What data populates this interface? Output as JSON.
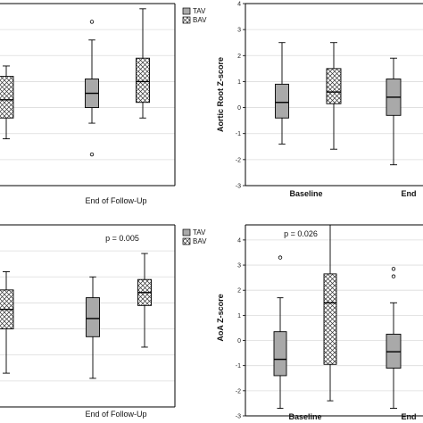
{
  "colors": {
    "tav": "#a9a9a9",
    "bav": "#ffffff",
    "grid": "#dcdcdc",
    "frame": "#000000"
  },
  "chart_data": [
    {
      "type": "box",
      "panel": "top-left",
      "x_label": "End of Follow-Up",
      "legend": [
        "TAV",
        "BAV"
      ],
      "legend_position": "top-right",
      "ylim": [
        -3,
        4
      ],
      "boxes": [
        {
          "series": "BAV",
          "group": "Baseline",
          "min": -1.2,
          "q1": -0.4,
          "median": 0.3,
          "q3": 1.2,
          "max": 1.6
        },
        {
          "series": "TAV",
          "group": "End of Follow-Up",
          "min": -0.6,
          "q1": 0.0,
          "median": 0.55,
          "q3": 1.1,
          "max": 2.6,
          "outliers": [
            3.3,
            -1.8
          ]
        },
        {
          "series": "BAV",
          "group": "End of Follow-Up",
          "min": -0.4,
          "q1": 0.2,
          "median": 1.0,
          "q3": 1.9,
          "max": 3.8
        }
      ]
    },
    {
      "type": "box",
      "panel": "top-right",
      "y_label": "Aortic Root Z-score",
      "x_categories": [
        "Baseline",
        "End of Follow-Up"
      ],
      "x_tick_labels": [
        "Baseline",
        "End"
      ],
      "ylim": [
        -3,
        4
      ],
      "yticks": [
        -3,
        -2,
        -1,
        0,
        1,
        2,
        3,
        4
      ],
      "boxes": [
        {
          "series": "TAV",
          "group": "Baseline",
          "min": -1.4,
          "q1": -0.4,
          "median": 0.2,
          "q3": 0.9,
          "max": 2.5
        },
        {
          "series": "BAV",
          "group": "Baseline",
          "min": -1.6,
          "q1": 0.15,
          "median": 0.6,
          "q3": 1.5,
          "max": 2.5
        },
        {
          "series": "TAV",
          "group": "End of Follow-Up",
          "min": -2.2,
          "q1": -0.3,
          "median": 0.4,
          "q3": 1.1,
          "max": 1.9
        }
      ]
    },
    {
      "type": "box",
      "panel": "bottom-left",
      "x_label": "End of Follow-Up",
      "legend": [
        "TAV",
        "BAV"
      ],
      "legend_position": "top-right",
      "annotation": "p = 0.005",
      "ylim": [
        -3,
        4
      ],
      "boxes": [
        {
          "series": "BAV",
          "group": "Baseline",
          "min": -1.7,
          "q1": 0.0,
          "median": 0.75,
          "q3": 1.5,
          "max": 2.2
        },
        {
          "series": "TAV",
          "group": "End of Follow-Up",
          "min": -1.9,
          "q1": -0.3,
          "median": 0.4,
          "q3": 1.2,
          "max": 2.0
        },
        {
          "series": "BAV",
          "group": "End of Follow-Up",
          "min": -0.7,
          "q1": 0.9,
          "median": 1.4,
          "q3": 1.9,
          "max": 2.9
        }
      ]
    },
    {
      "type": "box",
      "panel": "bottom-right",
      "y_label": "AoA Z-score",
      "annotation": "p = 0.026",
      "x_categories": [
        "Baseline",
        "End of Follow-Up"
      ],
      "x_tick_labels": [
        "Baseline",
        "End"
      ],
      "ylim": [
        -3,
        4.6
      ],
      "yticks": [
        -3,
        -2,
        -1,
        0,
        1,
        2,
        3,
        4
      ],
      "boxes": [
        {
          "series": "TAV",
          "group": "Baseline",
          "min": -2.7,
          "q1": -1.4,
          "median": -0.75,
          "q3": 0.35,
          "max": 1.7,
          "outliers": [
            3.3
          ]
        },
        {
          "series": "BAV",
          "group": "Baseline",
          "min": -2.4,
          "q1": -0.95,
          "median": 1.5,
          "q3": 2.65,
          "max": 4.6
        },
        {
          "series": "TAV",
          "group": "End of Follow-Up",
          "min": -2.7,
          "q1": -1.1,
          "median": -0.45,
          "q3": 0.25,
          "max": 1.5,
          "outliers": [
            2.85,
            2.55
          ]
        }
      ]
    }
  ]
}
